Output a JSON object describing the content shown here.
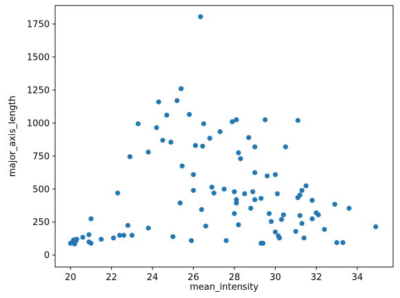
{
  "chart_data": {
    "type": "scatter",
    "title": "",
    "xlabel": "mean_intensity",
    "ylabel": "major_axis_length",
    "xlim": [
      19.25,
      35.75
    ],
    "ylim": [
      -90,
      1890
    ],
    "xticks": [
      20,
      22,
      24,
      26,
      28,
      30,
      32,
      34
    ],
    "yticks": [
      0,
      250,
      500,
      750,
      1000,
      1250,
      1500,
      1750
    ],
    "grid": false,
    "legend": "none",
    "colors": {
      "marker": "#1f77b4",
      "axes": "#000000",
      "background": "#ffffff"
    },
    "points": [
      [
        20.0,
        90
      ],
      [
        20.1,
        100
      ],
      [
        20.15,
        115
      ],
      [
        20.2,
        85
      ],
      [
        20.25,
        105
      ],
      [
        20.3,
        120
      ],
      [
        20.2,
        110
      ],
      [
        20.6,
        135
      ],
      [
        20.9,
        100
      ],
      [
        21.0,
        90
      ],
      [
        20.9,
        155
      ],
      [
        21.0,
        275
      ],
      [
        21.5,
        120
      ],
      [
        22.1,
        130
      ],
      [
        22.3,
        470
      ],
      [
        22.4,
        150
      ],
      [
        22.6,
        150
      ],
      [
        22.8,
        225
      ],
      [
        23.0,
        150
      ],
      [
        22.9,
        745
      ],
      [
        23.3,
        995
      ],
      [
        23.8,
        780
      ],
      [
        23.8,
        205
      ],
      [
        24.2,
        965
      ],
      [
        24.3,
        1160
      ],
      [
        24.5,
        870
      ],
      [
        24.7,
        1060
      ],
      [
        24.9,
        855
      ],
      [
        25.0,
        140
      ],
      [
        25.2,
        1170
      ],
      [
        25.35,
        395
      ],
      [
        25.4,
        1260
      ],
      [
        25.45,
        675
      ],
      [
        25.8,
        1065
      ],
      [
        25.9,
        110
      ],
      [
        26.0,
        490
      ],
      [
        26.0,
        610
      ],
      [
        26.1,
        830
      ],
      [
        26.35,
        1805
      ],
      [
        26.4,
        345
      ],
      [
        26.45,
        825
      ],
      [
        26.5,
        995
      ],
      [
        26.6,
        220
      ],
      [
        26.8,
        885
      ],
      [
        26.9,
        515
      ],
      [
        27.0,
        470
      ],
      [
        27.3,
        935
      ],
      [
        27.5,
        500
      ],
      [
        27.6,
        110
      ],
      [
        27.9,
        1010
      ],
      [
        28.0,
        315
      ],
      [
        28.0,
        480
      ],
      [
        28.1,
        395
      ],
      [
        28.1,
        420
      ],
      [
        28.2,
        230
      ],
      [
        28.1,
        1025
      ],
      [
        28.2,
        775
      ],
      [
        28.3,
        730
      ],
      [
        28.5,
        465
      ],
      [
        28.7,
        890
      ],
      [
        28.8,
        355
      ],
      [
        28.9,
        480
      ],
      [
        29.0,
        420
      ],
      [
        29.0,
        625
      ],
      [
        29.0,
        820
      ],
      [
        29.3,
        430
      ],
      [
        29.3,
        90
      ],
      [
        29.4,
        90
      ],
      [
        29.5,
        1025
      ],
      [
        29.6,
        600
      ],
      [
        29.7,
        315
      ],
      [
        29.8,
        255
      ],
      [
        30.0,
        175
      ],
      [
        30.0,
        610
      ],
      [
        30.1,
        465
      ],
      [
        30.15,
        145
      ],
      [
        30.2,
        130
      ],
      [
        30.3,
        270
      ],
      [
        30.4,
        305
      ],
      [
        30.5,
        820
      ],
      [
        31.0,
        180
      ],
      [
        31.1,
        1020
      ],
      [
        31.1,
        435
      ],
      [
        31.2,
        300
      ],
      [
        31.2,
        455
      ],
      [
        31.3,
        490
      ],
      [
        31.3,
        240
      ],
      [
        31.4,
        130
      ],
      [
        31.5,
        525
      ],
      [
        31.8,
        275
      ],
      [
        31.8,
        415
      ],
      [
        32.0,
        320
      ],
      [
        32.1,
        305
      ],
      [
        32.4,
        195
      ],
      [
        32.9,
        385
      ],
      [
        33.0,
        95
      ],
      [
        33.3,
        95
      ],
      [
        33.6,
        355
      ],
      [
        34.9,
        215
      ]
    ]
  }
}
